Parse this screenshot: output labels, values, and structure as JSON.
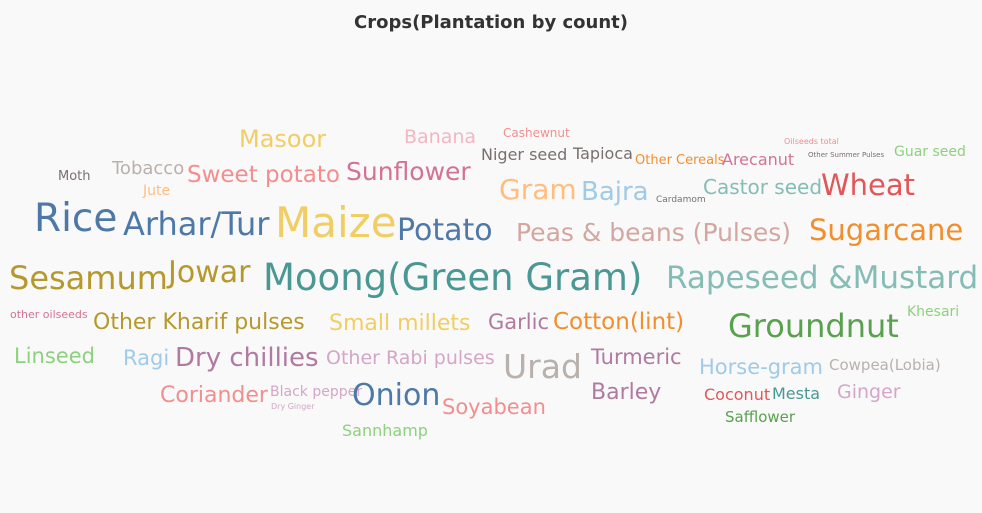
{
  "chart_data": {
    "type": "wordcloud",
    "title": "Crops(Plantation by count)",
    "words": [
      {
        "text": "Masoor",
        "color": "#f1ce63"
      },
      {
        "text": "Banana",
        "color": "#f3b6c2"
      },
      {
        "text": "Cashewnut",
        "color": "#f28e8e"
      },
      {
        "text": "Oilseeds total",
        "color": "#f28e8e"
      },
      {
        "text": "Moth",
        "color": "#79706e"
      },
      {
        "text": "Tobacco",
        "color": "#bab0ac"
      },
      {
        "text": "Sweet potato",
        "color": "#f28e8e"
      },
      {
        "text": "Sunflower",
        "color": "#d37295"
      },
      {
        "text": "Niger seed",
        "color": "#79706e"
      },
      {
        "text": "Tapioca",
        "color": "#79706e"
      },
      {
        "text": "Other Cereals",
        "color": "#f28e2b"
      },
      {
        "text": "Arecanut",
        "color": "#d37295"
      },
      {
        "text": "Other Summer Pulses",
        "color": "#79706e"
      },
      {
        "text": "Guar seed",
        "color": "#8cd17d"
      },
      {
        "text": "Jute",
        "color": "#ffbe7d"
      },
      {
        "text": "Gram",
        "color": "#ffbe7d"
      },
      {
        "text": "Bajra",
        "color": "#a0cbe8"
      },
      {
        "text": "Cardamom",
        "color": "#79706e"
      },
      {
        "text": "Castor seed",
        "color": "#86bcb6"
      },
      {
        "text": "Wheat",
        "color": "#e15759"
      },
      {
        "text": "Rice",
        "color": "#4e79a7"
      },
      {
        "text": "Arhar/Tur",
        "color": "#4e79a7"
      },
      {
        "text": "Maize",
        "color": "#f1ce63"
      },
      {
        "text": "Potato",
        "color": "#4e79a7"
      },
      {
        "text": "Peas & beans (Pulses)",
        "color": "#d4a6a0"
      },
      {
        "text": "Sugarcane",
        "color": "#f28e2b"
      },
      {
        "text": "Sesamum",
        "color": "#b6992d"
      },
      {
        "text": "Jowar",
        "color": "#b6992d"
      },
      {
        "text": "Moong(Green Gram)",
        "color": "#499894"
      },
      {
        "text": "Rapeseed &Mustard",
        "color": "#86bcb6"
      },
      {
        "text": "other oilseeds",
        "color": "#d37295"
      },
      {
        "text": "Other Kharif pulses",
        "color": "#b6992d"
      },
      {
        "text": "Small millets",
        "color": "#f1ce63"
      },
      {
        "text": "Garlic",
        "color": "#b07aa1"
      },
      {
        "text": "Cotton(lint)",
        "color": "#f28e2b"
      },
      {
        "text": "Groundnut",
        "color": "#59a14f"
      },
      {
        "text": "Khesari",
        "color": "#8cd17d"
      },
      {
        "text": "Linseed",
        "color": "#8cd17d"
      },
      {
        "text": "Ragi",
        "color": "#a0cbe8"
      },
      {
        "text": "Dry chillies",
        "color": "#b07aa1"
      },
      {
        "text": "Other Rabi pulses",
        "color": "#d4a6c8"
      },
      {
        "text": "Urad",
        "color": "#bab0ac"
      },
      {
        "text": "Turmeric",
        "color": "#b07aa1"
      },
      {
        "text": "Horse-gram",
        "color": "#a0cbe8"
      },
      {
        "text": "Cowpea(Lobia)",
        "color": "#bab0ac"
      },
      {
        "text": "Coriander",
        "color": "#f28e8e"
      },
      {
        "text": "Black pepper",
        "color": "#d4a6c8"
      },
      {
        "text": "Dry Ginger",
        "color": "#d4a6c8"
      },
      {
        "text": "Onion",
        "color": "#4e79a7"
      },
      {
        "text": "Soyabean",
        "color": "#f28e8e"
      },
      {
        "text": "Barley",
        "color": "#b07aa1"
      },
      {
        "text": "Coconut",
        "color": "#e15759"
      },
      {
        "text": "Mesta",
        "color": "#499894"
      },
      {
        "text": "Ginger",
        "color": "#d4a6c8"
      },
      {
        "text": "Safflower",
        "color": "#59a14f"
      },
      {
        "text": "Sannhamp",
        "color": "#8cd17d"
      }
    ]
  }
}
